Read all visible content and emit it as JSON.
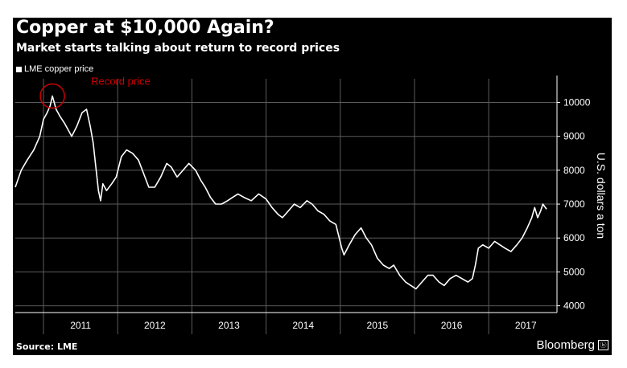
{
  "source": "Source: LME",
  "brand": "Bloomberg",
  "chart_data": {
    "type": "line",
    "title": "Copper at $10,000 Again?",
    "subtitle": "Market starts talking about return to record prices",
    "legend": [
      "LME copper price"
    ],
    "ylabel": "U.S. dollars a ton",
    "ylim": [
      3800,
      10700
    ],
    "yticks": [
      4000,
      5000,
      6000,
      7000,
      8000,
      9000,
      10000
    ],
    "xlim": [
      2010.62,
      2017.92
    ],
    "xlabels": [
      {
        "label": "2011",
        "pos": 2011.5
      },
      {
        "label": "2012",
        "pos": 2012.5
      },
      {
        "label": "2013",
        "pos": 2013.5
      },
      {
        "label": "2014",
        "pos": 2014.5
      },
      {
        "label": "2015",
        "pos": 2015.5
      },
      {
        "label": "2016",
        "pos": 2016.5
      },
      {
        "label": "2017",
        "pos": 2017.5
      }
    ],
    "annotation": {
      "text": "Record price",
      "x": 2011.12,
      "y": 10190,
      "color": "#cc0000"
    },
    "colors": {
      "background": "#000000",
      "line": "#ffffff",
      "grid": "#5c5c5c",
      "text": "#ffffff"
    },
    "series": [
      {
        "name": "LME copper price",
        "x": [
          2010.62,
          2010.7,
          2010.78,
          2010.87,
          2010.95,
          2011.0,
          2011.05,
          2011.09,
          2011.12,
          2011.17,
          2011.22,
          2011.28,
          2011.33,
          2011.38,
          2011.45,
          2011.52,
          2011.58,
          2011.63,
          2011.67,
          2011.71,
          2011.74,
          2011.77,
          2011.8,
          2011.85,
          2011.92,
          2011.98,
          2012.05,
          2012.12,
          2012.2,
          2012.28,
          2012.35,
          2012.42,
          2012.5,
          2012.58,
          2012.66,
          2012.72,
          2012.8,
          2012.88,
          2012.96,
          2013.05,
          2013.12,
          2013.18,
          2013.25,
          2013.32,
          2013.4,
          2013.48,
          2013.55,
          2013.62,
          2013.7,
          2013.8,
          2013.9,
          2014.0,
          2014.08,
          2014.16,
          2014.22,
          2014.3,
          2014.38,
          2014.46,
          2014.55,
          2014.62,
          2014.7,
          2014.78,
          2014.86,
          2014.94,
          2015.02,
          2015.05,
          2015.12,
          2015.2,
          2015.28,
          2015.35,
          2015.42,
          2015.5,
          2015.58,
          2015.66,
          2015.72,
          2015.8,
          2015.88,
          2015.95,
          2016.02,
          2016.1,
          2016.18,
          2016.25,
          2016.33,
          2016.4,
          2016.48,
          2016.56,
          2016.64,
          2016.72,
          2016.78,
          2016.82,
          2016.86,
          2016.92,
          2017.0,
          2017.08,
          2017.15,
          2017.22,
          2017.3,
          2017.38,
          2017.45,
          2017.52,
          2017.58,
          2017.62,
          2017.66,
          2017.7,
          2017.73,
          2017.78
        ],
        "values": [
          7500,
          8000,
          8300,
          8600,
          9000,
          9500,
          9700,
          9900,
          10190,
          9800,
          9600,
          9400,
          9200,
          9000,
          9300,
          9700,
          9800,
          9300,
          8800,
          8000,
          7400,
          7100,
          7600,
          7400,
          7600,
          7800,
          8400,
          8600,
          8500,
          8300,
          7900,
          7500,
          7500,
          7800,
          8200,
          8100,
          7800,
          8000,
          8200,
          8000,
          7700,
          7500,
          7200,
          7000,
          7000,
          7100,
          7200,
          7300,
          7200,
          7100,
          7300,
          7150,
          6900,
          6700,
          6600,
          6800,
          7000,
          6900,
          7100,
          7000,
          6800,
          6700,
          6500,
          6400,
          5700,
          5500,
          5800,
          6100,
          6300,
          6000,
          5800,
          5400,
          5200,
          5100,
          5200,
          4900,
          4700,
          4600,
          4500,
          4700,
          4900,
          4900,
          4700,
          4600,
          4800,
          4900,
          4800,
          4700,
          4800,
          5200,
          5700,
          5800,
          5700,
          5900,
          5800,
          5700,
          5600,
          5800,
          6000,
          6300,
          6600,
          6900,
          6600,
          6800,
          7000,
          6850
        ]
      }
    ]
  }
}
